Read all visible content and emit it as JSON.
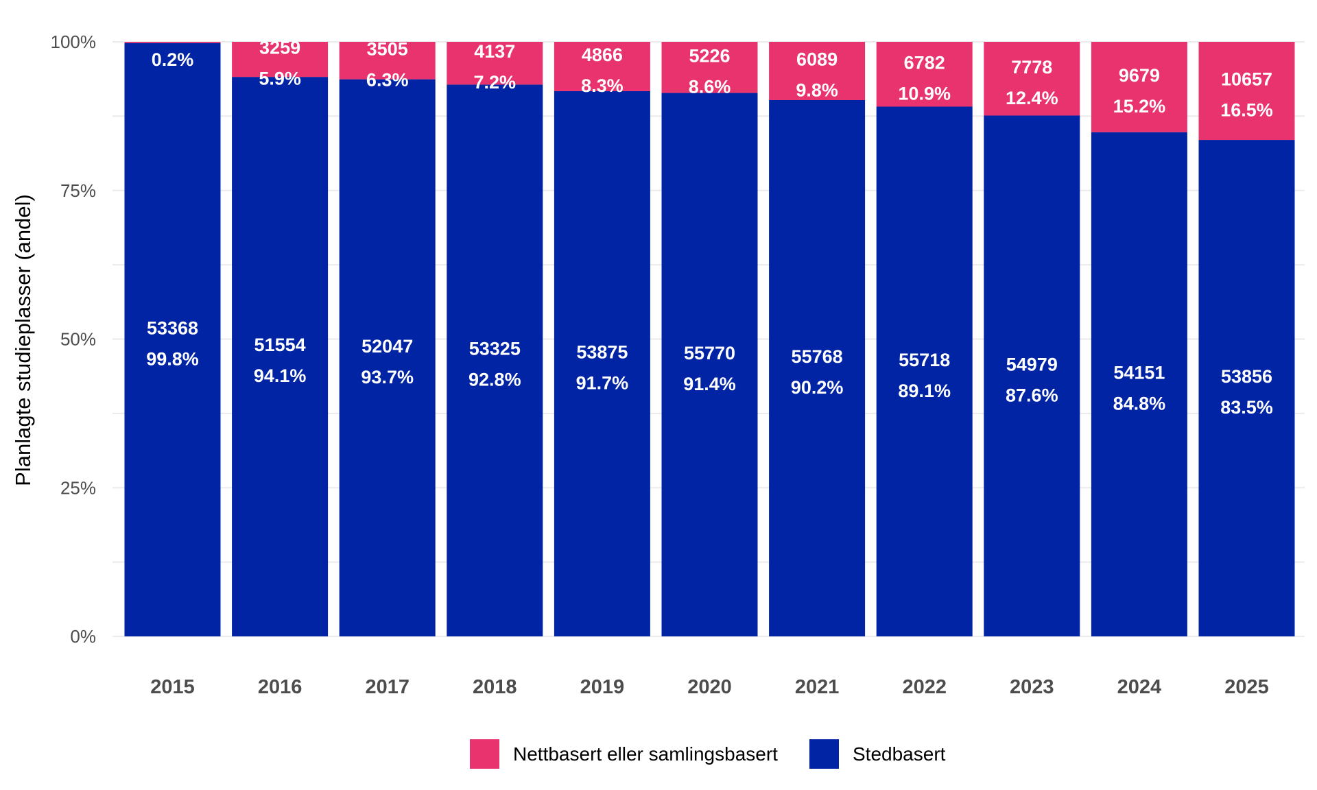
{
  "chart_data": {
    "type": "bar",
    "stacked": true,
    "percent": true,
    "categories": [
      "2015",
      "2016",
      "2017",
      "2018",
      "2019",
      "2020",
      "2021",
      "2022",
      "2023",
      "2024",
      "2025"
    ],
    "series": [
      {
        "name": "Nettbasert eller samlingsbasert",
        "color": "#e8336f",
        "counts": [
          null,
          3259,
          3505,
          4137,
          4866,
          5226,
          6089,
          6782,
          7778,
          9679,
          10657
        ],
        "count_labels": [
          "",
          "3259",
          "3505",
          "4137",
          "4866",
          "5226",
          "6089",
          "6782",
          "7778",
          "9679",
          "10657"
        ],
        "values": [
          0.2,
          5.9,
          6.3,
          7.2,
          8.3,
          8.6,
          9.8,
          10.9,
          12.4,
          15.2,
          16.5
        ],
        "pct_labels": [
          "0.2%",
          "5.9%",
          "6.3%",
          "7.2%",
          "8.3%",
          "8.6%",
          "9.8%",
          "10.9%",
          "12.4%",
          "15.2%",
          "16.5%"
        ]
      },
      {
        "name": "Stedbasert",
        "color": "#0024a3",
        "counts": [
          53368,
          51554,
          52047,
          53325,
          53875,
          55770,
          55768,
          55718,
          54979,
          54151,
          53856
        ],
        "count_labels": [
          "53368",
          "51554",
          "52047",
          "53325",
          "53875",
          "55770",
          "55768",
          "55718",
          "54979",
          "54151",
          "53856"
        ],
        "values": [
          99.8,
          94.1,
          93.7,
          92.8,
          91.7,
          91.4,
          90.2,
          89.1,
          87.6,
          84.8,
          83.5
        ],
        "pct_labels": [
          "99.8%",
          "94.1%",
          "93.7%",
          "92.8%",
          "91.7%",
          "91.4%",
          "90.2%",
          "89.1%",
          "87.6%",
          "84.8%",
          "83.5%"
        ]
      }
    ],
    "title": "",
    "xlabel": "",
    "ylabel": "Planlagte studieplasser (andel)",
    "ylim": [
      0,
      100
    ],
    "yticks": [
      0,
      25,
      50,
      75,
      100
    ],
    "ytick_labels": [
      "0%",
      "25%",
      "50%",
      "75%",
      "100%"
    ],
    "grid": true,
    "legend": {
      "position": "bottom",
      "entries": [
        "Nettbasert eller samlingsbasert",
        "Stedbasert"
      ]
    }
  }
}
